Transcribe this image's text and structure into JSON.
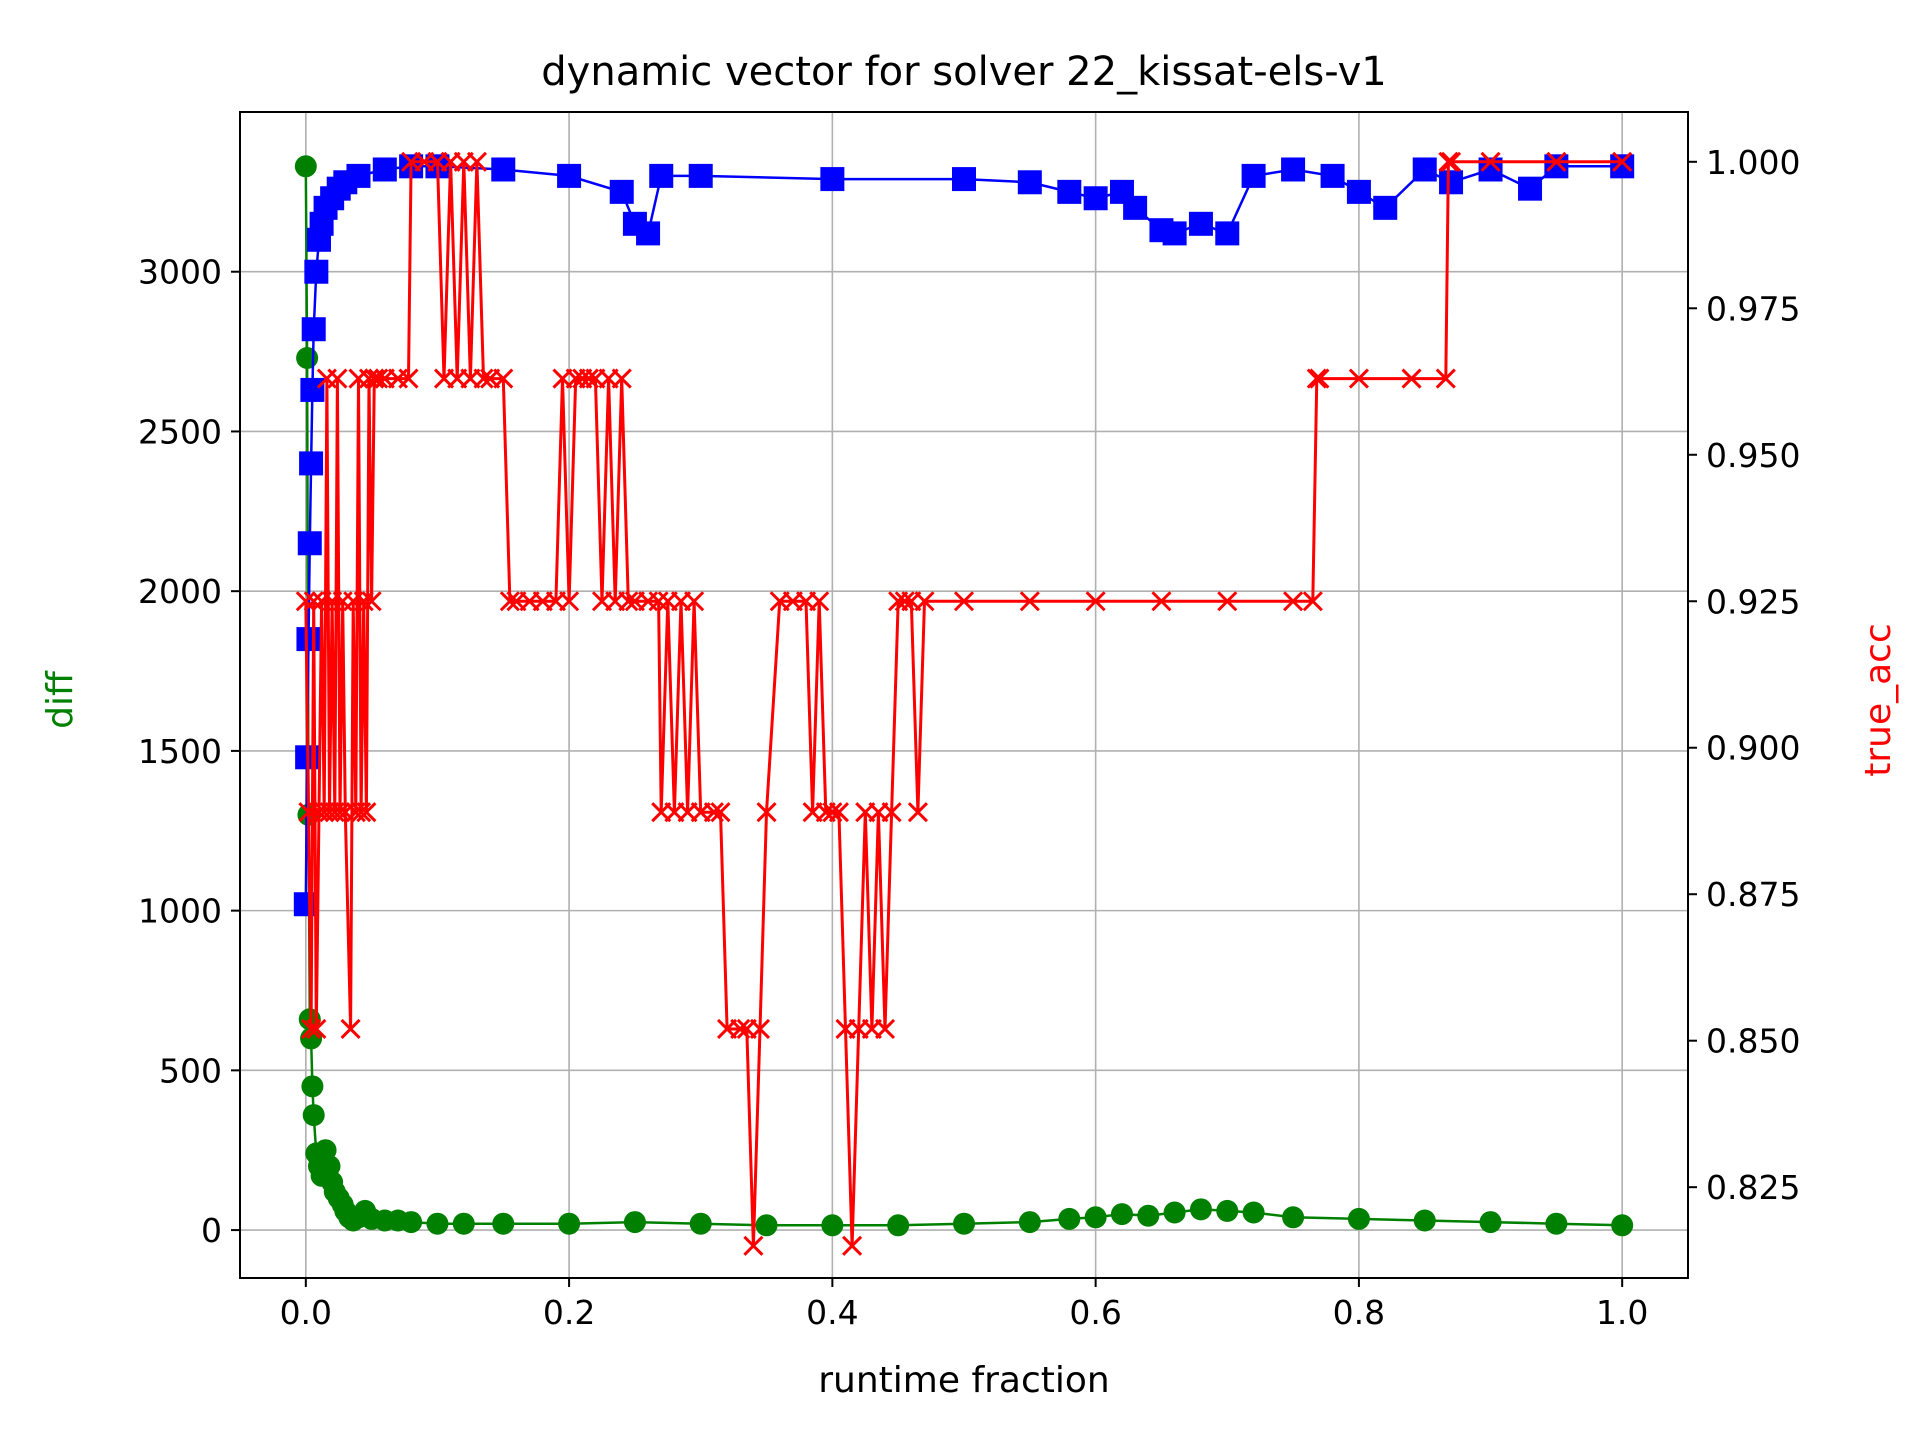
{
  "chart_data": {
    "type": "line",
    "title": "dynamic vector for solver 22_kissat-els-v1",
    "xlabel": "runtime fraction",
    "ylabel_left": "diff",
    "ylabel_right": "true_acc",
    "xlim": [
      -0.05,
      1.05
    ],
    "ylim_left": [
      -150,
      3500
    ],
    "ylim_right": [
      0.8095,
      1.0085
    ],
    "xticks": [
      0.0,
      0.2,
      0.4,
      0.6,
      0.8,
      1.0
    ],
    "xtick_labels": [
      "0.0",
      "0.2",
      "0.4",
      "0.6",
      "0.8",
      "1.0"
    ],
    "yticks_left": [
      0,
      500,
      1000,
      1500,
      2000,
      2500,
      3000
    ],
    "ytick_labels_left": [
      "0",
      "500",
      "1000",
      "1500",
      "2000",
      "2500",
      "3000"
    ],
    "yticks_right": [
      0.825,
      0.85,
      0.875,
      0.9,
      0.925,
      0.95,
      0.975,
      1.0
    ],
    "ytick_labels_right": [
      "0.825",
      "0.850",
      "0.875",
      "0.900",
      "0.925",
      "0.950",
      "0.975",
      "1.000"
    ],
    "grid": true,
    "colors": {
      "diff": "#008000",
      "blue": "#0000ff",
      "true_acc": "#ff0000",
      "axes_label_left": "#008000",
      "axes_label_right": "#ff0000"
    },
    "series": [
      {
        "axis": "left",
        "marker": "circle",
        "color": "#008000",
        "x": [
          0.0,
          0.001,
          0.002,
          0.003,
          0.004,
          0.005,
          0.006,
          0.008,
          0.01,
          0.012,
          0.015,
          0.018,
          0.02,
          0.022,
          0.025,
          0.028,
          0.03,
          0.033,
          0.036,
          0.04,
          0.045,
          0.05,
          0.06,
          0.07,
          0.08,
          0.1,
          0.12,
          0.15,
          0.2,
          0.25,
          0.3,
          0.35,
          0.4,
          0.45,
          0.5,
          0.55,
          0.58,
          0.6,
          0.62,
          0.64,
          0.66,
          0.68,
          0.7,
          0.72,
          0.75,
          0.8,
          0.85,
          0.9,
          0.95,
          1.0
        ],
        "y": [
          3330,
          2730,
          1300,
          660,
          600,
          450,
          360,
          240,
          200,
          170,
          250,
          200,
          150,
          120,
          100,
          80,
          60,
          40,
          30,
          40,
          60,
          35,
          30,
          30,
          25,
          20,
          20,
          20,
          20,
          25,
          20,
          15,
          15,
          15,
          20,
          25,
          35,
          40,
          50,
          45,
          55,
          65,
          60,
          55,
          40,
          35,
          30,
          25,
          20,
          15
        ]
      },
      {
        "axis": "left",
        "marker": "square",
        "color": "#0000ff",
        "x": [
          0.0,
          0.001,
          0.002,
          0.003,
          0.004,
          0.005,
          0.006,
          0.008,
          0.01,
          0.012,
          0.015,
          0.02,
          0.025,
          0.03,
          0.04,
          0.06,
          0.08,
          0.1,
          0.15,
          0.2,
          0.24,
          0.25,
          0.26,
          0.27,
          0.3,
          0.4,
          0.5,
          0.55,
          0.58,
          0.6,
          0.62,
          0.63,
          0.65,
          0.66,
          0.68,
          0.7,
          0.72,
          0.75,
          0.78,
          0.8,
          0.82,
          0.85,
          0.87,
          0.9,
          0.93,
          0.95,
          1.0
        ],
        "y": [
          1020,
          1480,
          1850,
          2150,
          2400,
          2630,
          2820,
          3000,
          3100,
          3150,
          3200,
          3230,
          3260,
          3280,
          3300,
          3320,
          3330,
          3330,
          3320,
          3300,
          3250,
          3150,
          3120,
          3300,
          3300,
          3290,
          3290,
          3280,
          3250,
          3230,
          3250,
          3200,
          3130,
          3120,
          3150,
          3120,
          3300,
          3320,
          3300,
          3250,
          3200,
          3320,
          3280,
          3320,
          3260,
          3330,
          3330
        ]
      },
      {
        "axis": "right",
        "marker": "x",
        "color": "#ff0000",
        "x": [
          0.0,
          0.002,
          0.004,
          0.006,
          0.008,
          0.01,
          0.012,
          0.014,
          0.016,
          0.018,
          0.02,
          0.022,
          0.024,
          0.026,
          0.028,
          0.03,
          0.034,
          0.036,
          0.038,
          0.04,
          0.042,
          0.044,
          0.046,
          0.048,
          0.05,
          0.052,
          0.055,
          0.06,
          0.07,
          0.078,
          0.08,
          0.09,
          0.1,
          0.105,
          0.11,
          0.115,
          0.12,
          0.125,
          0.13,
          0.135,
          0.14,
          0.15,
          0.155,
          0.16,
          0.17,
          0.18,
          0.19,
          0.195,
          0.2,
          0.205,
          0.21,
          0.215,
          0.22,
          0.225,
          0.23,
          0.235,
          0.24,
          0.245,
          0.25,
          0.26,
          0.268,
          0.27,
          0.275,
          0.28,
          0.285,
          0.29,
          0.295,
          0.3,
          0.31,
          0.315,
          0.32,
          0.33,
          0.335,
          0.34,
          0.345,
          0.35,
          0.36,
          0.37,
          0.38,
          0.385,
          0.39,
          0.395,
          0.4,
          0.405,
          0.41,
          0.415,
          0.42,
          0.425,
          0.43,
          0.435,
          0.44,
          0.445,
          0.45,
          0.455,
          0.46,
          0.465,
          0.47,
          0.5,
          0.55,
          0.6,
          0.65,
          0.7,
          0.75,
          0.765,
          0.768,
          0.77,
          0.8,
          0.84,
          0.866,
          0.868,
          0.87,
          0.9,
          0.95,
          1.0
        ],
        "y": [
          0.925,
          0.889,
          0.852,
          0.925,
          0.852,
          0.889,
          0.925,
          0.889,
          0.963,
          0.889,
          0.925,
          0.889,
          0.963,
          0.889,
          0.925,
          0.889,
          0.852,
          0.925,
          0.889,
          0.963,
          0.889,
          0.925,
          0.889,
          0.963,
          0.925,
          0.963,
          0.963,
          0.963,
          0.963,
          0.963,
          1.0,
          1.0,
          1.0,
          0.963,
          1.0,
          0.963,
          1.0,
          0.963,
          1.0,
          0.963,
          0.963,
          0.963,
          0.925,
          0.925,
          0.925,
          0.925,
          0.925,
          0.963,
          0.925,
          0.963,
          0.963,
          0.963,
          0.963,
          0.925,
          0.963,
          0.925,
          0.963,
          0.925,
          0.925,
          0.925,
          0.925,
          0.889,
          0.925,
          0.889,
          0.925,
          0.889,
          0.925,
          0.889,
          0.889,
          0.889,
          0.852,
          0.852,
          0.852,
          0.815,
          0.852,
          0.889,
          0.925,
          0.925,
          0.925,
          0.889,
          0.925,
          0.889,
          0.889,
          0.889,
          0.852,
          0.815,
          0.852,
          0.889,
          0.852,
          0.889,
          0.852,
          0.889,
          0.925,
          0.925,
          0.925,
          0.889,
          0.925,
          0.925,
          0.925,
          0.925,
          0.925,
          0.925,
          0.925,
          0.925,
          0.963,
          0.963,
          0.963,
          0.963,
          0.963,
          1.0,
          1.0,
          1.0,
          1.0,
          1.0
        ]
      }
    ]
  }
}
